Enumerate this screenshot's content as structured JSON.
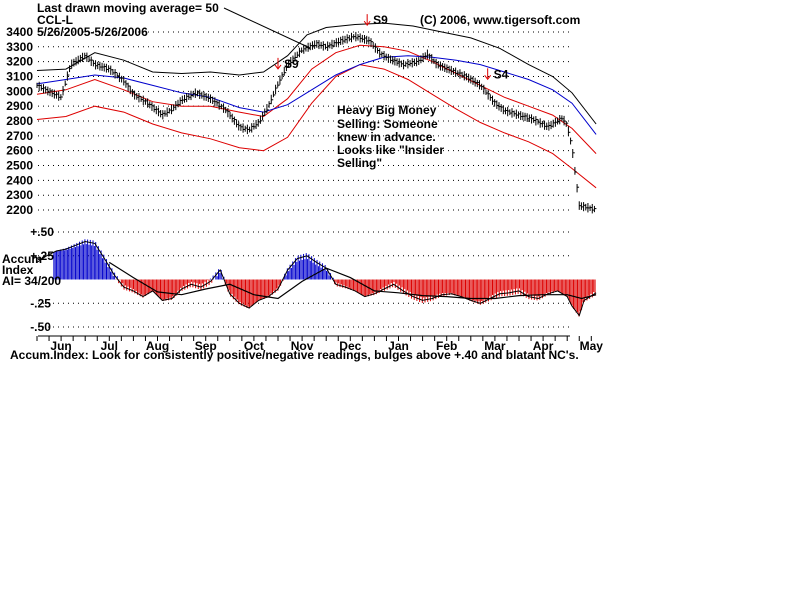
{
  "header": {
    "ma_note": "Last drawn moving average= 50",
    "symbol": "CCL-L",
    "date_range": "5/26/2005-5/26/2006",
    "copyright": "(C) 2006, www.tigersoft.com"
  },
  "annotation": {
    "lines": [
      "Heavy Big Money",
      "Selling:  Someone",
      "knew in advance.",
      "Looks like \"Insider",
      "Selling\""
    ]
  },
  "signals": [
    {
      "label": "S9",
      "month_pos": 5.0
    },
    {
      "label": "S9",
      "month_pos": 6.85
    },
    {
      "label": "S4",
      "month_pos": 9.35
    }
  ],
  "footer": "Accum.Index: Look for consistently positive/negative readings, bulges above +.40 and blatant NC's.",
  "indicator_label": {
    "line1": "Accum",
    "line2": "Index",
    "line3": "AI= 34/200"
  },
  "colors": {
    "price": "#000000",
    "upper_band": "#000000",
    "red_band": "#dd0000",
    "ma": "#0000cc",
    "accum_pos": "#0000cc",
    "accum_neg": "#dd0000",
    "signal": "#dd0000"
  },
  "chart_data": {
    "type": "line",
    "months": [
      "Jun",
      "Jul",
      "Aug",
      "Sep",
      "Oct",
      "Nov",
      "Dec",
      "Jan",
      "Feb",
      "Mar",
      "Apr",
      "May"
    ],
    "price_yticks": [
      2200,
      2300,
      2400,
      2500,
      2600,
      2700,
      2800,
      2900,
      3000,
      3100,
      3200,
      3300,
      3400
    ],
    "price_ylim": [
      2180,
      3420
    ],
    "indicator_yticks": [
      "+.50",
      "+.25",
      "-.25",
      "-.50"
    ],
    "indicator_ylim": [
      -0.5,
      0.5
    ],
    "price": [
      [
        0.0,
        3040
      ],
      [
        0.3,
        2990
      ],
      [
        0.5,
        2960
      ],
      [
        0.7,
        3180
      ],
      [
        1.0,
        3240
      ],
      [
        1.2,
        3180
      ],
      [
        1.5,
        3150
      ],
      [
        1.8,
        3070
      ],
      [
        2.0,
        2980
      ],
      [
        2.3,
        2920
      ],
      [
        2.6,
        2840
      ],
      [
        2.8,
        2880
      ],
      [
        3.0,
        2940
      ],
      [
        3.3,
        2990
      ],
      [
        3.6,
        2950
      ],
      [
        3.9,
        2880
      ],
      [
        4.2,
        2760
      ],
      [
        4.4,
        2740
      ],
      [
        4.6,
        2790
      ],
      [
        4.8,
        2900
      ],
      [
        5.0,
        3050
      ],
      [
        5.2,
        3180
      ],
      [
        5.5,
        3280
      ],
      [
        5.8,
        3320
      ],
      [
        6.0,
        3300
      ],
      [
        6.3,
        3340
      ],
      [
        6.6,
        3370
      ],
      [
        6.9,
        3340
      ],
      [
        7.1,
        3260
      ],
      [
        7.3,
        3220
      ],
      [
        7.6,
        3180
      ],
      [
        7.9,
        3200
      ],
      [
        8.1,
        3250
      ],
      [
        8.3,
        3180
      ],
      [
        8.6,
        3140
      ],
      [
        8.9,
        3100
      ],
      [
        9.2,
        3040
      ],
      [
        9.5,
        2920
      ],
      [
        9.7,
        2870
      ],
      [
        10.0,
        2840
      ],
      [
        10.3,
        2810
      ],
      [
        10.6,
        2760
      ],
      [
        10.9,
        2820
      ],
      [
        11.0,
        2770
      ],
      [
        11.1,
        2620
      ],
      [
        11.25,
        2230
      ],
      [
        11.5,
        2210
      ],
      [
        11.6,
        2205
      ]
    ],
    "upper_band": [
      [
        0.0,
        3140
      ],
      [
        0.6,
        3150
      ],
      [
        1.2,
        3260
      ],
      [
        1.8,
        3210
      ],
      [
        2.4,
        3130
      ],
      [
        3.0,
        3120
      ],
      [
        3.6,
        3130
      ],
      [
        4.2,
        3110
      ],
      [
        4.7,
        3130
      ],
      [
        5.2,
        3240
      ],
      [
        5.6,
        3380
      ],
      [
        6.0,
        3430
      ],
      [
        6.6,
        3450
      ],
      [
        7.2,
        3460
      ],
      [
        7.8,
        3440
      ],
      [
        8.4,
        3400
      ],
      [
        9.0,
        3360
      ],
      [
        9.6,
        3290
      ],
      [
        10.2,
        3180
      ],
      [
        10.7,
        3100
      ],
      [
        11.1,
        2990
      ],
      [
        11.6,
        2780
      ]
    ],
    "ma50": [
      [
        0.0,
        3050
      ],
      [
        0.6,
        3080
      ],
      [
        1.2,
        3110
      ],
      [
        1.8,
        3090
      ],
      [
        2.4,
        3040
      ],
      [
        3.0,
        2990
      ],
      [
        3.6,
        2960
      ],
      [
        4.2,
        2890
      ],
      [
        4.7,
        2860
      ],
      [
        5.2,
        2910
      ],
      [
        5.7,
        3010
      ],
      [
        6.2,
        3110
      ],
      [
        6.7,
        3180
      ],
      [
        7.2,
        3230
      ],
      [
        7.7,
        3240
      ],
      [
        8.2,
        3230
      ],
      [
        8.7,
        3210
      ],
      [
        9.2,
        3180
      ],
      [
        9.7,
        3130
      ],
      [
        10.2,
        3080
      ],
      [
        10.7,
        3010
      ],
      [
        11.1,
        2920
      ],
      [
        11.6,
        2710
      ]
    ],
    "mid_band": [
      [
        0.0,
        2980
      ],
      [
        0.6,
        3010
      ],
      [
        1.2,
        3080
      ],
      [
        1.8,
        3010
      ],
      [
        2.4,
        2930
      ],
      [
        3.0,
        2900
      ],
      [
        3.6,
        2900
      ],
      [
        4.2,
        2860
      ],
      [
        4.7,
        2830
      ],
      [
        5.2,
        2950
      ],
      [
        5.7,
        3150
      ],
      [
        6.2,
        3260
      ],
      [
        6.7,
        3310
      ],
      [
        7.2,
        3300
      ],
      [
        7.7,
        3270
      ],
      [
        8.2,
        3200
      ],
      [
        8.7,
        3120
      ],
      [
        9.2,
        3040
      ],
      [
        9.7,
        2960
      ],
      [
        10.2,
        2900
      ],
      [
        10.7,
        2840
      ],
      [
        11.1,
        2750
      ],
      [
        11.6,
        2580
      ]
    ],
    "lower_band": [
      [
        0.0,
        2810
      ],
      [
        0.6,
        2830
      ],
      [
        1.2,
        2900
      ],
      [
        1.8,
        2860
      ],
      [
        2.4,
        2780
      ],
      [
        3.0,
        2720
      ],
      [
        3.6,
        2680
      ],
      [
        4.2,
        2620
      ],
      [
        4.7,
        2600
      ],
      [
        5.2,
        2690
      ],
      [
        5.7,
        2920
      ],
      [
        6.2,
        3100
      ],
      [
        6.7,
        3180
      ],
      [
        7.2,
        3150
      ],
      [
        7.7,
        3080
      ],
      [
        8.2,
        2980
      ],
      [
        8.7,
        2880
      ],
      [
        9.2,
        2790
      ],
      [
        9.7,
        2720
      ],
      [
        10.2,
        2660
      ],
      [
        10.7,
        2580
      ],
      [
        11.1,
        2480
      ],
      [
        11.6,
        2350
      ]
    ],
    "accum": [
      [
        0.0,
        0.18
      ],
      [
        0.2,
        0.25
      ],
      [
        0.4,
        0.3
      ],
      [
        0.6,
        0.32
      ],
      [
        0.8,
        0.36
      ],
      [
        1.0,
        0.4
      ],
      [
        1.2,
        0.38
      ],
      [
        1.4,
        0.22
      ],
      [
        1.6,
        0.05
      ],
      [
        1.8,
        -0.08
      ],
      [
        2.0,
        -0.12
      ],
      [
        2.2,
        -0.18
      ],
      [
        2.4,
        -0.12
      ],
      [
        2.6,
        -0.22
      ],
      [
        2.8,
        -0.2
      ],
      [
        3.0,
        -0.1
      ],
      [
        3.2,
        -0.05
      ],
      [
        3.4,
        -0.08
      ],
      [
        3.6,
        -0.02
      ],
      [
        3.8,
        0.1
      ],
      [
        4.0,
        -0.15
      ],
      [
        4.2,
        -0.25
      ],
      [
        4.4,
        -0.3
      ],
      [
        4.6,
        -0.22
      ],
      [
        4.8,
        -0.18
      ],
      [
        5.0,
        -0.1
      ],
      [
        5.2,
        0.1
      ],
      [
        5.4,
        0.22
      ],
      [
        5.6,
        0.25
      ],
      [
        5.8,
        0.18
      ],
      [
        6.0,
        0.12
      ],
      [
        6.2,
        -0.05
      ],
      [
        6.4,
        -0.08
      ],
      [
        6.6,
        -0.12
      ],
      [
        6.8,
        -0.18
      ],
      [
        7.0,
        -0.15
      ],
      [
        7.2,
        -0.1
      ],
      [
        7.4,
        -0.05
      ],
      [
        7.6,
        -0.12
      ],
      [
        7.8,
        -0.18
      ],
      [
        8.0,
        -0.22
      ],
      [
        8.2,
        -0.2
      ],
      [
        8.4,
        -0.16
      ],
      [
        8.6,
        -0.15
      ],
      [
        8.8,
        -0.18
      ],
      [
        9.0,
        -0.22
      ],
      [
        9.2,
        -0.25
      ],
      [
        9.4,
        -0.2
      ],
      [
        9.6,
        -0.15
      ],
      [
        9.8,
        -0.14
      ],
      [
        10.0,
        -0.12
      ],
      [
        10.2,
        -0.18
      ],
      [
        10.4,
        -0.2
      ],
      [
        10.6,
        -0.15
      ],
      [
        10.8,
        -0.12
      ],
      [
        11.0,
        -0.18
      ],
      [
        11.1,
        -0.28
      ],
      [
        11.25,
        -0.38
      ],
      [
        11.35,
        -0.22
      ],
      [
        11.6,
        -0.14
      ]
    ],
    "accum_ma": [
      [
        1.5,
        0.18
      ],
      [
        2.0,
        0.02
      ],
      [
        2.5,
        -0.13
      ],
      [
        3.0,
        -0.16
      ],
      [
        3.5,
        -0.1
      ],
      [
        4.0,
        -0.05
      ],
      [
        4.5,
        -0.16
      ],
      [
        5.0,
        -0.2
      ],
      [
        5.5,
        -0.02
      ],
      [
        6.0,
        0.12
      ],
      [
        6.5,
        0.02
      ],
      [
        7.0,
        -0.12
      ],
      [
        7.5,
        -0.14
      ],
      [
        8.0,
        -0.17
      ],
      [
        8.5,
        -0.18
      ],
      [
        9.0,
        -0.2
      ],
      [
        9.5,
        -0.2
      ],
      [
        10.0,
        -0.17
      ],
      [
        10.5,
        -0.16
      ],
      [
        11.0,
        -0.16
      ],
      [
        11.3,
        -0.2
      ],
      [
        11.6,
        -0.16
      ]
    ]
  }
}
